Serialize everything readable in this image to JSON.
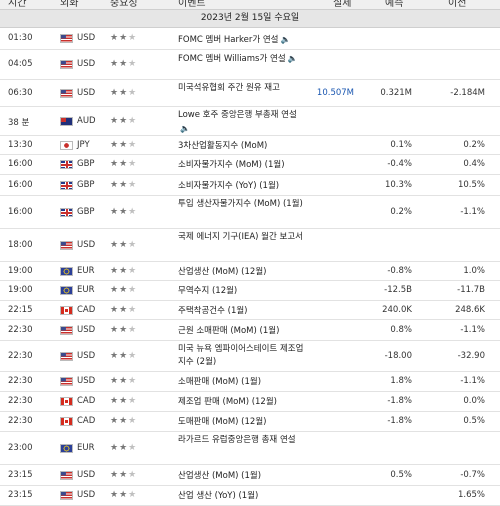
{
  "header": {
    "time": "시간",
    "currency": "외화",
    "importance": "중요성",
    "event": "이벤트",
    "actual": "실제",
    "forecast": "예측",
    "previous": "이전"
  },
  "date_banner": "2023년 2월 15일 수요일",
  "rows": [
    {
      "time": "01:30",
      "flag": "us",
      "cur": "USD",
      "stars": 2,
      "event": "FOMC 멤버 Harker가 연설",
      "speech": true,
      "actual": "",
      "forecast": "",
      "previous": ""
    },
    {
      "time": "04:05",
      "flag": "us",
      "cur": "USD",
      "stars": 2,
      "event": "FOMC 멤버 Williams가 연설",
      "speech": true,
      "actual": "",
      "forecast": "",
      "previous": ""
    },
    {
      "time": "06:30",
      "flag": "us",
      "cur": "USD",
      "stars": 2,
      "event": "미국석유협회 주간 원유 재고",
      "speech": false,
      "actual": "10.507M",
      "forecast": "0.321M",
      "previous": "-2.184M"
    },
    {
      "time": "38 분",
      "flag": "au",
      "cur": "AUD",
      "stars": 2,
      "event": "Lowe 호주 중앙은행 부총재 연설",
      "speech": true,
      "actual": "",
      "forecast": "",
      "previous": ""
    },
    {
      "time": "13:30",
      "flag": "jp",
      "cur": "JPY",
      "stars": 2,
      "event": "3차산업활동지수 (MoM)",
      "speech": false,
      "actual": "",
      "forecast": "0.1%",
      "previous": "0.2%"
    },
    {
      "time": "16:00",
      "flag": "gb",
      "cur": "GBP",
      "stars": 2,
      "event": "소비자물가지수 (MoM) (1월)",
      "speech": false,
      "actual": "",
      "forecast": "-0.4%",
      "previous": "0.4%"
    },
    {
      "time": "16:00",
      "flag": "gb",
      "cur": "GBP",
      "stars": 2,
      "event": "소비자물가지수 (YoY) (1월)",
      "speech": false,
      "actual": "",
      "forecast": "10.3%",
      "previous": "10.5%"
    },
    {
      "time": "16:00",
      "flag": "gb",
      "cur": "GBP",
      "stars": 2,
      "event": "투입 생산자물가지수 (MoM) (1월)",
      "speech": false,
      "actual": "",
      "forecast": "0.2%",
      "previous": "-1.1%"
    },
    {
      "time": "18:00",
      "flag": "us",
      "cur": "USD",
      "stars": 2,
      "event": "국제 에너지 기구(IEA) 월간 보고서",
      "speech": false,
      "actual": "",
      "forecast": "",
      "previous": ""
    },
    {
      "time": "19:00",
      "flag": "eu",
      "cur": "EUR",
      "stars": 2,
      "event": "산업생산 (MoM) (12월)",
      "speech": false,
      "actual": "",
      "forecast": "-0.8%",
      "previous": "1.0%"
    },
    {
      "time": "19:00",
      "flag": "eu",
      "cur": "EUR",
      "stars": 2,
      "event": "무역수지 (12월)",
      "speech": false,
      "actual": "",
      "forecast": "-12.5B",
      "previous": "-11.7B"
    },
    {
      "time": "22:15",
      "flag": "ca",
      "cur": "CAD",
      "stars": 2,
      "event": "주택착공건수 (1월)",
      "speech": false,
      "actual": "",
      "forecast": "240.0K",
      "previous": "248.6K"
    },
    {
      "time": "22:30",
      "flag": "us",
      "cur": "USD",
      "stars": 2,
      "event": "근원 소매판매 (MoM) (1월)",
      "speech": false,
      "actual": "",
      "forecast": "0.8%",
      "previous": "-1.1%"
    },
    {
      "time": "22:30",
      "flag": "us",
      "cur": "USD",
      "stars": 2,
      "event": "미국 뉴욕 엠파이어스테이트 제조업지수 (2월)",
      "speech": false,
      "actual": "",
      "forecast": "-18.00",
      "previous": "-32.90"
    },
    {
      "time": "22:30",
      "flag": "us",
      "cur": "USD",
      "stars": 2,
      "event": "소매판매 (MoM) (1월)",
      "speech": false,
      "actual": "",
      "forecast": "1.8%",
      "previous": "-1.1%"
    },
    {
      "time": "22:30",
      "flag": "ca",
      "cur": "CAD",
      "stars": 2,
      "event": "제조업 판매 (MoM) (12월)",
      "speech": false,
      "actual": "",
      "forecast": "-1.8%",
      "previous": "0.0%"
    },
    {
      "time": "22:30",
      "flag": "ca",
      "cur": "CAD",
      "stars": 2,
      "event": "도매판매 (MoM) (12월)",
      "speech": false,
      "actual": "",
      "forecast": "-1.8%",
      "previous": "0.5%"
    },
    {
      "time": "23:00",
      "flag": "eu",
      "cur": "EUR",
      "stars": 2,
      "event": "라가르드 유럽중앙은행 총재 연설",
      "speech": false,
      "actual": "",
      "forecast": "",
      "previous": ""
    },
    {
      "time": "23:15",
      "flag": "us",
      "cur": "USD",
      "stars": 2,
      "event": "산업생산 (MoM) (1월)",
      "speech": false,
      "actual": "",
      "forecast": "0.5%",
      "previous": "-0.7%"
    },
    {
      "time": "23:15",
      "flag": "us",
      "cur": "USD",
      "stars": 2,
      "event": "산업 생산 (YoY) (1월)",
      "speech": false,
      "actual": "",
      "forecast": "",
      "previous": "1.65%"
    }
  ]
}
